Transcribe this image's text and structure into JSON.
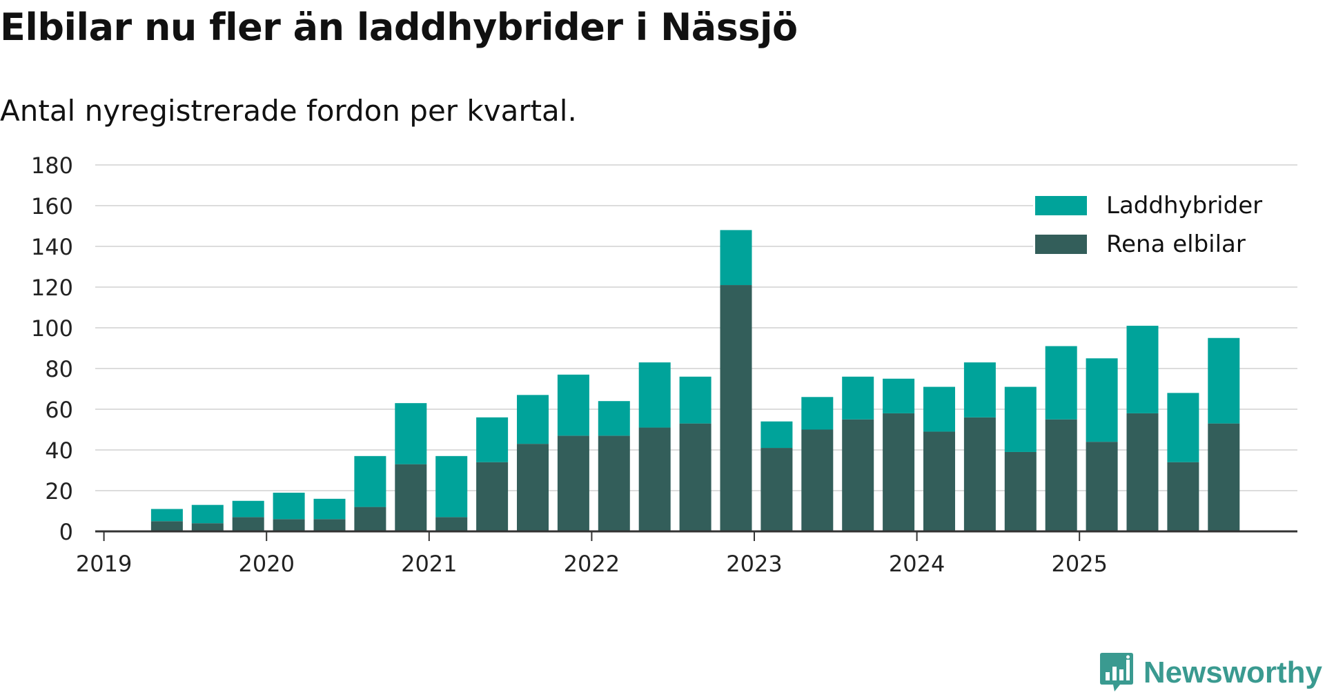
{
  "title": "Elbilar nu fler än laddhybrider i Nässjö",
  "subtitle": "Antal nyregistrerade fordon per kvartal.",
  "brand": {
    "name": "Newsworthy",
    "icon": "bar-chart-speech-icon"
  },
  "colors": {
    "laddhybrider": "#00a39a",
    "rena_elbilar": "#335e5a",
    "grid": "#dcdcdc",
    "axis": "#333333",
    "brand": "#3a9a90"
  },
  "chart_data": {
    "type": "bar",
    "stacked": true,
    "title": "Elbilar nu fler än laddhybrider i Nässjö",
    "subtitle": "Antal nyregistrerade fordon per kvartal.",
    "xlabel": "",
    "ylabel": "",
    "ylim": [
      0,
      180
    ],
    "yticks": [
      "0",
      "20",
      "40",
      "60",
      "80",
      "100",
      "120",
      "140",
      "160",
      "180"
    ],
    "xticks": [
      "2019",
      "2020",
      "2021",
      "2022",
      "2023",
      "2024",
      "2025"
    ],
    "categories": [
      "2019 Q1",
      "2019 Q2",
      "2019 Q3",
      "2019 Q4",
      "2020 Q1",
      "2020 Q2",
      "2020 Q3",
      "2020 Q4",
      "2021 Q1",
      "2021 Q2",
      "2021 Q3",
      "2021 Q4",
      "2022 Q1",
      "2022 Q2",
      "2022 Q3",
      "2022 Q4",
      "2023 Q1",
      "2023 Q2",
      "2023 Q3",
      "2023 Q4",
      "2024 Q1",
      "2024 Q2",
      "2024 Q3",
      "2024 Q4",
      "2025 Q1",
      "2025 Q2",
      "2025 Q3",
      "2025 Q4"
    ],
    "series": [
      {
        "name": "Rena elbilar",
        "values": [
          0,
          5,
          4,
          7,
          6,
          6,
          12,
          33,
          7,
          34,
          43,
          47,
          47,
          51,
          53,
          121,
          41,
          50,
          55,
          58,
          49,
          56,
          39,
          55,
          44,
          58,
          34,
          53
        ]
      },
      {
        "name": "Laddhybrider",
        "values": [
          0,
          6,
          9,
          8,
          13,
          10,
          25,
          30,
          30,
          22,
          24,
          30,
          17,
          32,
          23,
          27,
          13,
          16,
          21,
          17,
          22,
          27,
          32,
          36,
          41,
          43,
          34,
          42
        ]
      }
    ],
    "legend": [
      {
        "name": "Laddhybrider"
      },
      {
        "name": "Rena elbilar"
      }
    ],
    "legend_position": "top-right",
    "grid": true
  }
}
